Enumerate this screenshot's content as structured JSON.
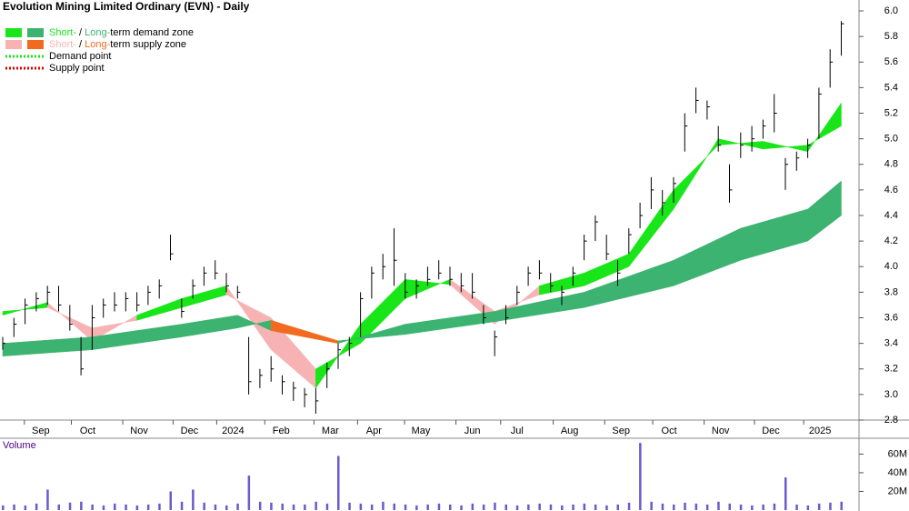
{
  "chart_data": {
    "type": "ohlc",
    "title": "Evolution Mining Limited Ordinary (EVN) - Daily",
    "legend": [
      {
        "parts": [
          "Short-",
          " / ",
          "Long-",
          "term demand zone"
        ],
        "colors": [
          "#19e619",
          "#000000",
          "#3cb371",
          "#000000"
        ],
        "swatches": [
          "#19e619",
          "#3cb371"
        ],
        "style": "box"
      },
      {
        "parts": [
          "Short-",
          " / ",
          "Long-",
          "term supply zone"
        ],
        "colors": [
          "#f7b3b3",
          "#000000",
          "#f26a1f",
          "#000000"
        ],
        "swatches": [
          "#f7b3b3",
          "#f26a1f"
        ],
        "style": "box"
      },
      {
        "parts": [
          "Demand point"
        ],
        "colors": [
          "#000000"
        ],
        "swatches": [
          "#19e619"
        ],
        "style": "dots"
      },
      {
        "parts": [
          "Supply point"
        ],
        "colors": [
          "#000000"
        ],
        "swatches": [
          "#e00000"
        ],
        "style": "dots"
      }
    ],
    "color": "#000000",
    "high": [
      3.45,
      3.6,
      3.75,
      3.8,
      3.85,
      3.85,
      3.7,
      3.45,
      3.7,
      3.75,
      3.8,
      3.8,
      3.8,
      3.85,
      3.9,
      4.25,
      3.75,
      3.9,
      4.0,
      4.05,
      3.95,
      3.85,
      3.45,
      3.2,
      3.3,
      3.15,
      3.1,
      3.05,
      3.05,
      3.25,
      3.4,
      3.45,
      3.8,
      4.0,
      4.1,
      4.3,
      3.95,
      3.9,
      4.0,
      4.05,
      4.0,
      3.95,
      3.95,
      3.7,
      3.5,
      3.7,
      3.85,
      4.0,
      4.05,
      3.95,
      3.85,
      4.0,
      4.25,
      4.4,
      4.25,
      4.05,
      4.3,
      4.5,
      4.7,
      4.6,
      4.7,
      5.2,
      5.4,
      5.3,
      5.1,
      4.8,
      5.05,
      5.1,
      5.15,
      5.35,
      4.85,
      4.9,
      5.0,
      5.4,
      5.7,
      5.92
    ],
    "low": [
      3.35,
      3.45,
      3.55,
      3.65,
      3.7,
      3.65,
      3.5,
      3.15,
      3.35,
      3.6,
      3.65,
      3.65,
      3.65,
      3.7,
      3.75,
      4.05,
      3.6,
      3.75,
      3.85,
      3.9,
      3.8,
      3.75,
      3.0,
      3.05,
      3.1,
      3.0,
      2.95,
      2.9,
      2.85,
      3.05,
      3.2,
      3.3,
      3.45,
      3.75,
      3.9,
      3.85,
      3.75,
      3.75,
      3.85,
      3.9,
      3.85,
      3.8,
      3.75,
      3.55,
      3.3,
      3.55,
      3.7,
      3.85,
      3.9,
      3.8,
      3.7,
      3.85,
      4.05,
      4.2,
      4.05,
      3.85,
      4.1,
      4.3,
      4.45,
      4.4,
      4.5,
      4.9,
      5.2,
      5.15,
      4.9,
      4.5,
      4.85,
      4.9,
      5.0,
      5.05,
      4.6,
      4.75,
      4.85,
      5.0,
      5.4,
      5.65
    ],
    "close": [
      3.4,
      3.55,
      3.7,
      3.75,
      3.8,
      3.7,
      3.55,
      3.2,
      3.6,
      3.7,
      3.7,
      3.75,
      3.7,
      3.8,
      3.85,
      4.1,
      3.65,
      3.85,
      3.95,
      3.95,
      3.85,
      3.8,
      3.1,
      3.15,
      3.2,
      3.1,
      3.05,
      3.0,
      2.95,
      3.2,
      3.35,
      3.4,
      3.75,
      3.95,
      4.0,
      4.05,
      3.8,
      3.85,
      3.9,
      3.95,
      3.9,
      3.85,
      3.8,
      3.6,
      3.45,
      3.6,
      3.8,
      3.95,
      3.95,
      3.85,
      3.8,
      3.95,
      4.2,
      4.35,
      4.1,
      3.95,
      4.25,
      4.4,
      4.6,
      4.5,
      4.65,
      5.1,
      5.3,
      5.25,
      4.95,
      4.6,
      4.95,
      5.0,
      5.1,
      5.2,
      4.8,
      4.85,
      4.95,
      5.35,
      5.6,
      5.9
    ],
    "xticks": [
      {
        "value": 3.4,
        "label": "Sep"
      },
      {
        "value": 7.6,
        "label": "Oct"
      },
      {
        "value": 12.2,
        "label": "Nov"
      },
      {
        "value": 16.7,
        "label": "Dec"
      },
      {
        "value": 20.6,
        "label": "2024"
      },
      {
        "value": 24.9,
        "label": "Feb"
      },
      {
        "value": 29.3,
        "label": "Mar"
      },
      {
        "value": 33.2,
        "label": "Apr"
      },
      {
        "value": 37.4,
        "label": "May"
      },
      {
        "value": 42.0,
        "label": "Jun"
      },
      {
        "value": 46.0,
        "label": "Jul"
      },
      {
        "value": 50.7,
        "label": "Aug"
      },
      {
        "value": 55.3,
        "label": "Sep"
      },
      {
        "value": 59.6,
        "label": "Oct"
      },
      {
        "value": 64.2,
        "label": "Nov"
      },
      {
        "value": 68.7,
        "label": "Dec"
      },
      {
        "value": 73.1,
        "label": "2025"
      }
    ],
    "ylim": [
      2.8,
      6.0
    ],
    "yticks": [
      2.8,
      {
        "value": 3,
        "label": "3.0"
      },
      3.2,
      3.4,
      3.6,
      3.8,
      {
        "value": 4,
        "label": "4.0"
      },
      4.2,
      4.4,
      4.6,
      4.8,
      {
        "value": 5,
        "label": "5.0"
      },
      5.2,
      5.4,
      5.6,
      5.8,
      {
        "value": 6,
        "label": "6.0"
      }
    ],
    "zones": [
      {
        "x": [
          0,
          4,
          8,
          12,
          16,
          20,
          24,
          28,
          32,
          36,
          40,
          44,
          48,
          52,
          56,
          60,
          64,
          68,
          72,
          75
        ],
        "fast": [
          3.62,
          3.72,
          3.42,
          3.62,
          3.75,
          3.85,
          3.35,
          3.05,
          3.55,
          3.9,
          3.86,
          3.55,
          3.85,
          3.95,
          4.1,
          4.6,
          4.95,
          4.98,
          4.9,
          5.28
        ],
        "slow": [
          3.65,
          3.68,
          3.52,
          3.58,
          3.68,
          3.78,
          3.6,
          3.2,
          3.4,
          3.75,
          3.9,
          3.65,
          3.78,
          3.85,
          4.0,
          4.45,
          5.0,
          4.92,
          4.95,
          5.1
        ],
        "demand_color": "#19e619",
        "supply_color": "#f7b3b3"
      },
      {
        "x": [
          0,
          8,
          16,
          21,
          24,
          30,
          36,
          44,
          52,
          60,
          66,
          72,
          75
        ],
        "fast": [
          3.4,
          3.45,
          3.55,
          3.62,
          3.5,
          3.4,
          3.55,
          3.65,
          3.8,
          4.05,
          4.3,
          4.45,
          4.67
        ],
        "slow": [
          3.3,
          3.35,
          3.45,
          3.52,
          3.58,
          3.42,
          3.47,
          3.57,
          3.68,
          3.85,
          4.05,
          4.2,
          4.4
        ],
        "demand_color": "#3cb371",
        "supply_color": "#f26a1f"
      }
    ],
    "volume": {
      "label": "Volume",
      "color": "#6a5acd",
      "values": [
        5,
        6,
        5,
        7,
        22,
        6,
        8,
        9,
        6,
        5,
        7,
        6,
        5,
        6,
        7,
        20,
        9,
        22,
        8,
        6,
        5,
        7,
        37,
        9,
        8,
        7,
        6,
        6,
        9,
        7,
        58,
        8,
        7,
        6,
        9,
        7,
        6,
        5,
        6,
        7,
        6,
        5,
        7,
        6,
        8,
        6,
        5,
        6,
        7,
        6,
        5,
        6,
        7,
        6,
        5,
        6,
        8,
        72,
        9,
        7,
        6,
        8,
        7,
        6,
        9,
        7,
        6,
        5,
        6,
        7,
        35,
        6,
        5,
        7,
        8,
        9
      ],
      "ylim": [
        0,
        75
      ],
      "yticks": [
        {
          "value": 20,
          "label": "20M"
        },
        {
          "value": 40,
          "label": "40M"
        },
        {
          "value": 60,
          "label": "60M"
        }
      ]
    }
  }
}
